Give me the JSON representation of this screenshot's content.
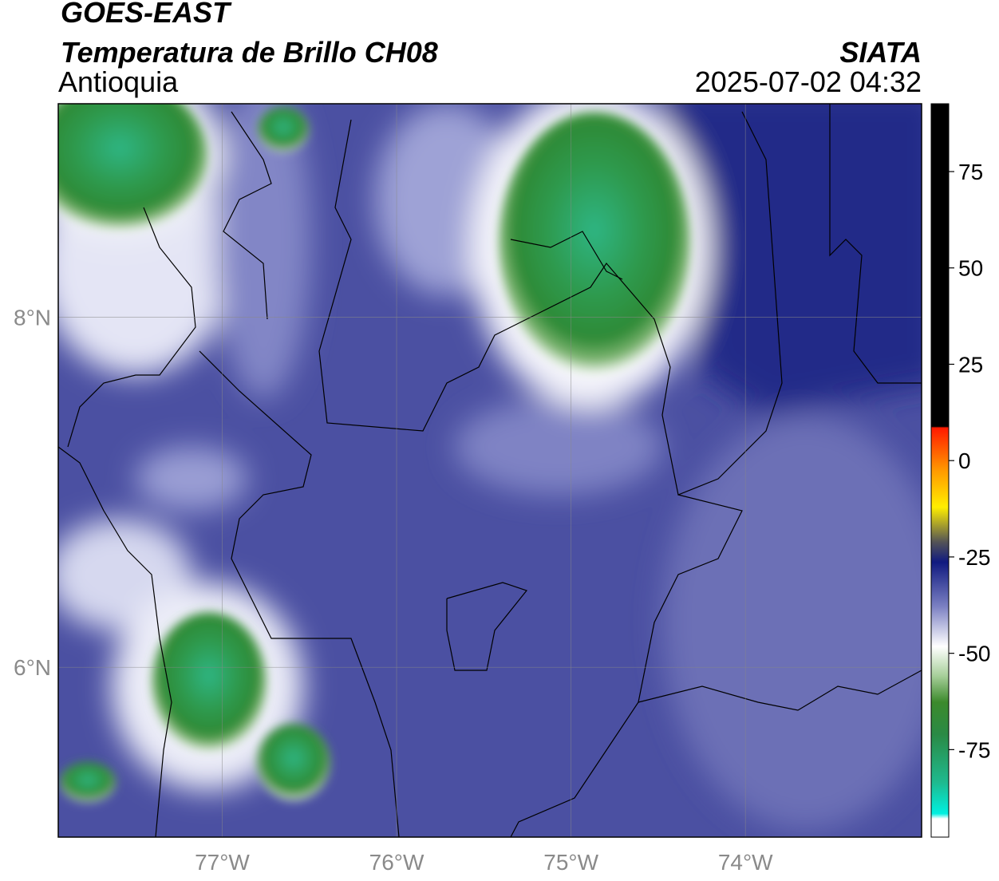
{
  "header": {
    "title": "GOES-EAST",
    "subtitle": "Temperatura de Brillo CH08",
    "region": "Antioquia",
    "source": "SIATA",
    "datetime": "2025-07-02 04:32"
  },
  "map": {
    "xlim": [
      -77.94,
      -72.99
    ],
    "ylim": [
      5.03,
      9.22
    ],
    "xticks": [
      {
        "value": -77,
        "label": "77°W"
      },
      {
        "value": -76,
        "label": "76°W"
      },
      {
        "value": -75,
        "label": "75°W"
      },
      {
        "value": -74,
        "label": "74°W"
      }
    ],
    "yticks": [
      {
        "value": 8,
        "label": "8°N"
      },
      {
        "value": 6,
        "label": "6°N"
      }
    ],
    "grid": true
  },
  "colorbar": {
    "lim": [
      -97.7,
      92.6
    ],
    "ticks": [
      75,
      50,
      25,
      0,
      -25,
      -50,
      -75
    ]
  }
}
